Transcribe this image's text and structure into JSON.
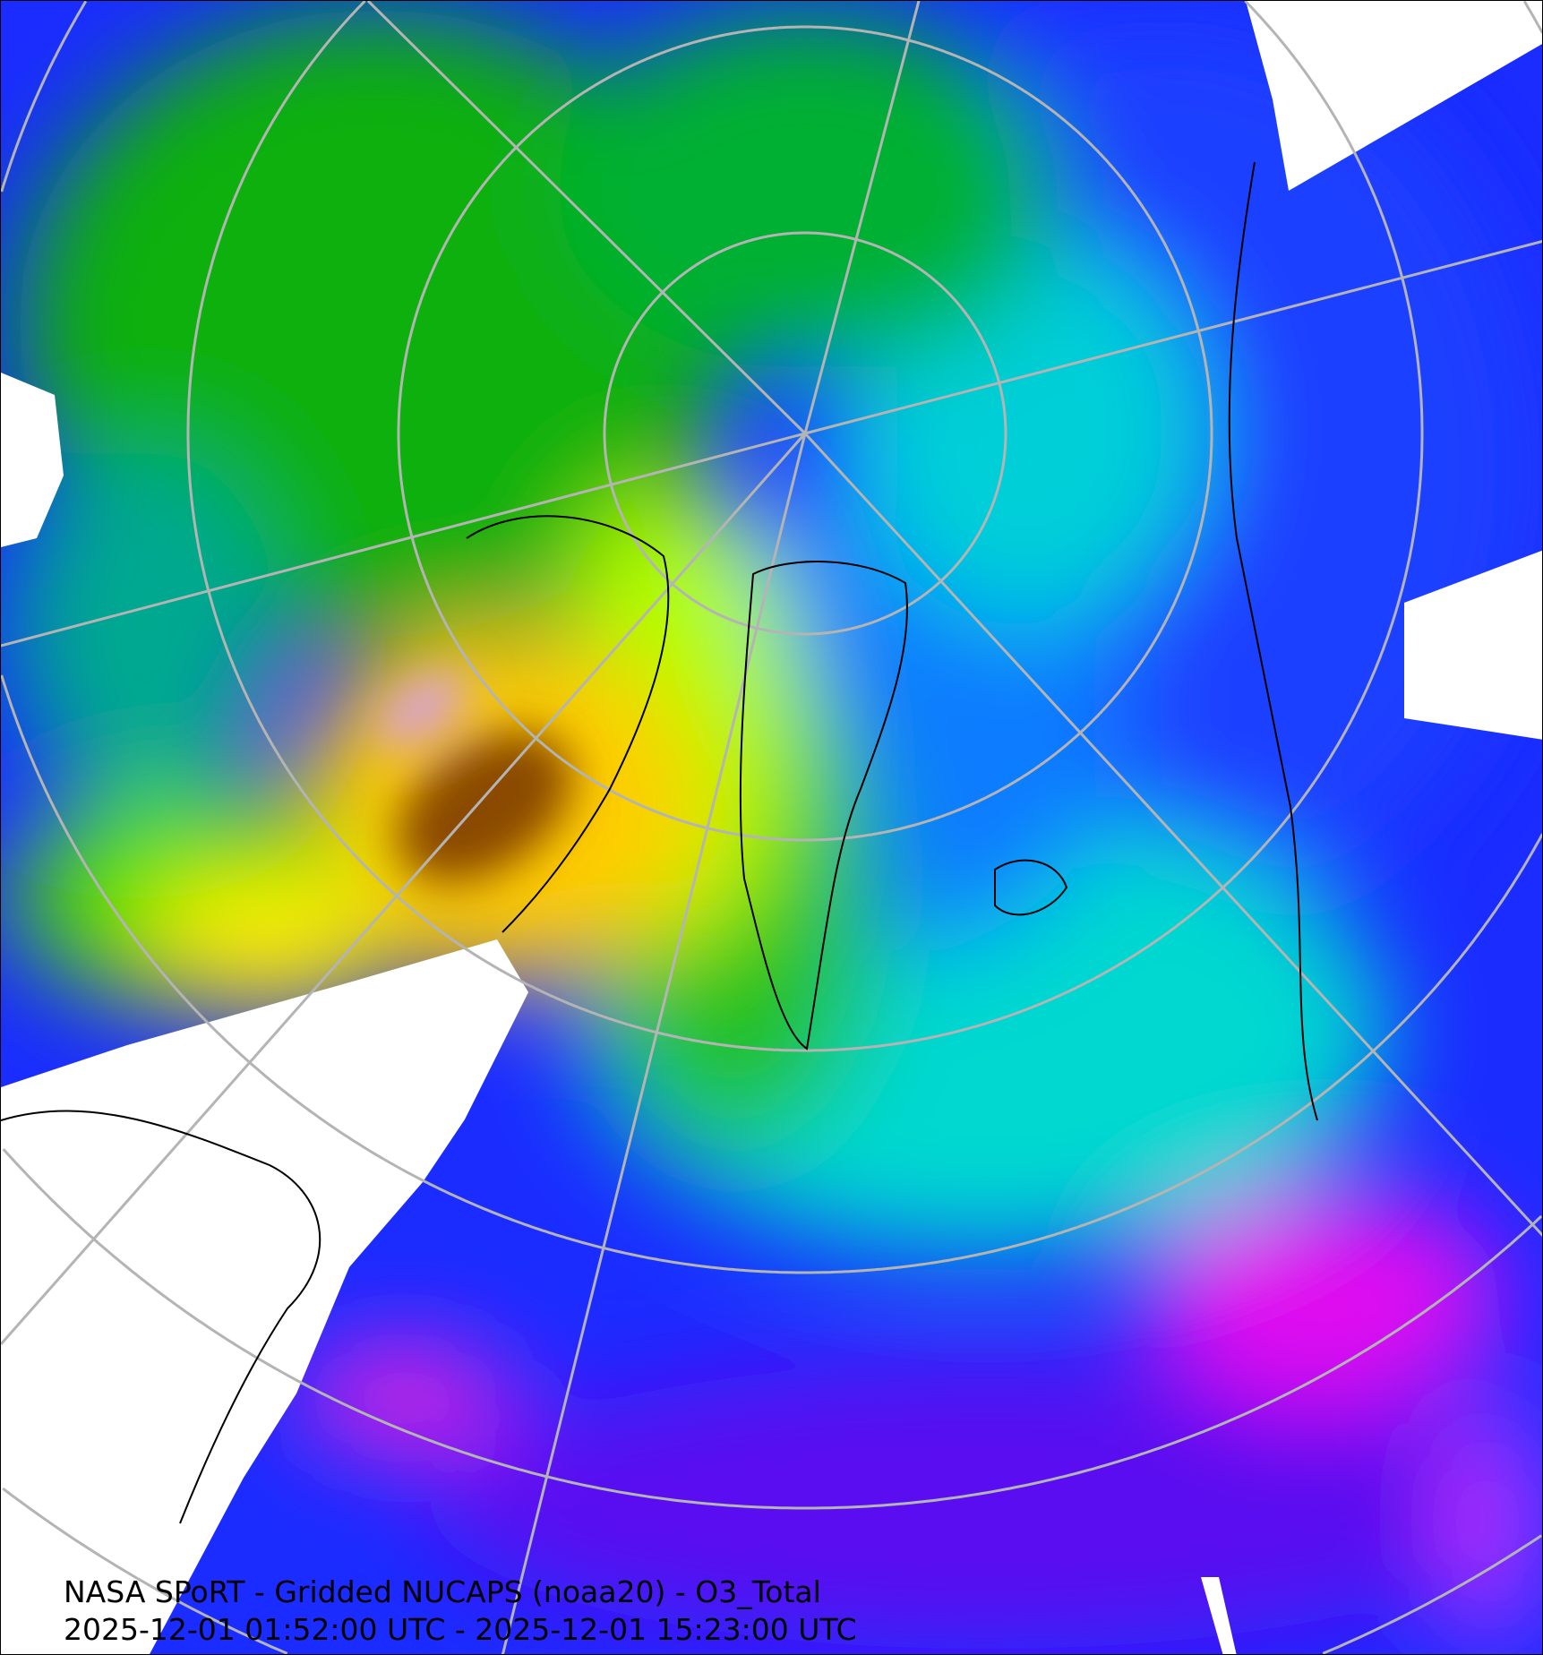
{
  "map": {
    "title": "NASA SPoRT - Gridded NUCAPS (noaa20) - O3_Total",
    "time_range": "2025-12-01 01:52:00 UTC - 2025-12-01 15:23:00 UTC",
    "projection": "north-polar stereographic",
    "colors": {
      "low_ozone_purple": "#8a00ff",
      "blue": "#0a1eff",
      "cyan": "#00e6e6",
      "green": "#00b400",
      "lime": "#7fff00",
      "yellow": "#ffee00",
      "orange": "#ffb000",
      "brown": "#7a3f00",
      "magenta": "#ff00ff",
      "no_data": "#ffffff",
      "graticule": "#b4b4b4",
      "coastlines": "#000000"
    }
  }
}
